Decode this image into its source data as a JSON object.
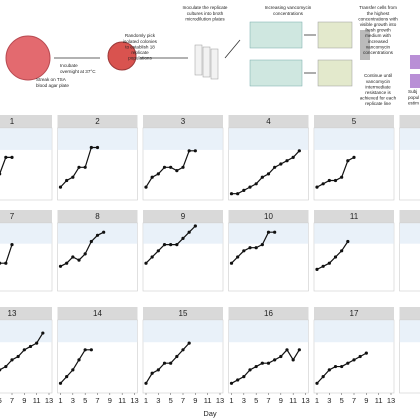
{
  "workflow": {
    "steps": [
      {
        "lines": [
          "Streak on TSA",
          "blood agar plate"
        ]
      },
      {
        "lines": [
          "Incubate",
          "overnight at 37°C"
        ]
      },
      {
        "lines": [
          "Randomly pick",
          "isolated colonies",
          "to establish 18",
          "replicate",
          "populations"
        ]
      },
      {
        "lines": [
          "Inoculate the replicate",
          "cultures into broth",
          "microdilution plates"
        ]
      },
      {
        "lines": [
          "Increasing vancomycin",
          "concentrations"
        ]
      },
      {
        "lines": [
          "Transfer cells from",
          "the highest",
          "concentrations with",
          "visible growth into",
          "fresh growth",
          "medium with",
          "increased",
          "vancomycin",
          "concentrations"
        ]
      },
      {
        "lines": [
          "Continue until",
          "vancomycin",
          "intermediate",
          "resistance is",
          "achieved for each",
          "replicate line"
        ]
      },
      {
        "lines": [
          "Subj",
          "popul",
          "estim"
        ]
      }
    ]
  },
  "chart_data": {
    "type": "line",
    "xlabel": "Day",
    "xlim": [
      1,
      13
    ],
    "xticks": [
      1,
      3,
      5,
      7,
      9,
      11,
      13
    ],
    "ylim": [
      0,
      10
    ],
    "color": "#111111",
    "panels": [
      {
        "title": "1",
        "x": [
          1,
          2,
          3,
          4,
          5,
          6,
          7
        ],
        "values": [
          0.5,
          1,
          2,
          2.5,
          3.5,
          6,
          6
        ]
      },
      {
        "title": "2",
        "x": [
          1,
          2,
          3,
          4,
          5,
          6,
          7
        ],
        "values": [
          1.5,
          2.5,
          3,
          4.5,
          4.5,
          7.5,
          7.5
        ]
      },
      {
        "title": "3",
        "x": [
          1,
          2,
          3,
          4,
          5,
          6,
          7,
          8,
          9
        ],
        "values": [
          1.5,
          3,
          3.5,
          4.5,
          4.5,
          4,
          4.5,
          7,
          7
        ]
      },
      {
        "title": "4",
        "x": [
          1,
          2,
          3,
          4,
          5,
          6,
          7,
          8,
          9,
          10,
          11,
          12
        ],
        "values": [
          0.5,
          0.5,
          1,
          1.5,
          2,
          3,
          3.5,
          4.5,
          5,
          5.5,
          6,
          7
        ]
      },
      {
        "title": "5",
        "x": [
          1,
          2,
          3,
          4,
          5,
          6,
          7
        ],
        "values": [
          1.5,
          2,
          2.5,
          2.5,
          3,
          5.5,
          6
        ]
      },
      {
        "title": "7",
        "x": [
          1,
          2,
          3,
          4,
          5,
          6,
          7
        ],
        "values": [
          1,
          2,
          3,
          4,
          4,
          4,
          7
        ]
      },
      {
        "title": "8",
        "x": [
          1,
          2,
          3,
          4,
          5,
          6,
          7,
          8
        ],
        "values": [
          3.5,
          4,
          5,
          4.5,
          5.5,
          7.5,
          8.5,
          9
        ]
      },
      {
        "title": "9",
        "x": [
          1,
          2,
          3,
          4,
          5,
          6,
          7,
          8,
          9
        ],
        "values": [
          4,
          5,
          6,
          7,
          7,
          7,
          8,
          9,
          10
        ]
      },
      {
        "title": "10",
        "x": [
          1,
          2,
          3,
          4,
          5,
          6,
          7,
          8
        ],
        "values": [
          4,
          5,
          6,
          6.5,
          6.5,
          7,
          9,
          9
        ]
      },
      {
        "title": "11",
        "x": [
          1,
          2,
          3,
          4,
          5,
          6
        ],
        "values": [
          3,
          3.5,
          4,
          5,
          6,
          7.5
        ]
      },
      {
        "title": "13",
        "x": [
          1,
          2,
          3,
          4,
          5,
          6,
          7,
          8,
          9,
          10,
          11,
          12
        ],
        "values": [
          2,
          2.5,
          3,
          3,
          3,
          3.5,
          4.5,
          5,
          6,
          6.5,
          7,
          8.5
        ]
      },
      {
        "title": "14",
        "x": [
          1,
          2,
          3,
          4,
          5,
          6
        ],
        "values": [
          1,
          2,
          3,
          4.5,
          6,
          6
        ]
      },
      {
        "title": "15",
        "x": [
          1,
          2,
          3,
          4,
          5,
          6,
          7,
          8
        ],
        "values": [
          1,
          2.5,
          3,
          4,
          4,
          5,
          6,
          7
        ]
      },
      {
        "title": "16",
        "x": [
          1,
          2,
          3,
          4,
          5,
          6,
          7,
          8,
          9,
          10,
          11,
          12
        ],
        "values": [
          1,
          1.5,
          2,
          3,
          3.5,
          4,
          4,
          4.5,
          5,
          6,
          4.5,
          6
        ]
      },
      {
        "title": "17",
        "x": [
          1,
          2,
          3,
          4,
          5,
          6,
          7,
          8,
          9
        ],
        "values": [
          1,
          2,
          3,
          3.5,
          3.5,
          4,
          4.5,
          5,
          5.5
        ]
      }
    ]
  }
}
